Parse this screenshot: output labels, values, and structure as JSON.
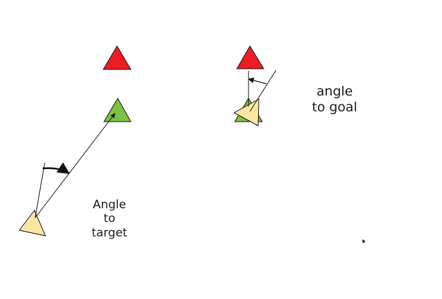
{
  "labels": {
    "angle_to_target": [
      "Angle",
      "to",
      "target"
    ],
    "angle_to_goal": [
      "angle",
      "to goal"
    ]
  },
  "colors": {
    "goal_fill": "#ee1c24",
    "target_fill": "#7dc242",
    "agent_fill": "#fbe6a4",
    "stroke": "#111111"
  }
}
